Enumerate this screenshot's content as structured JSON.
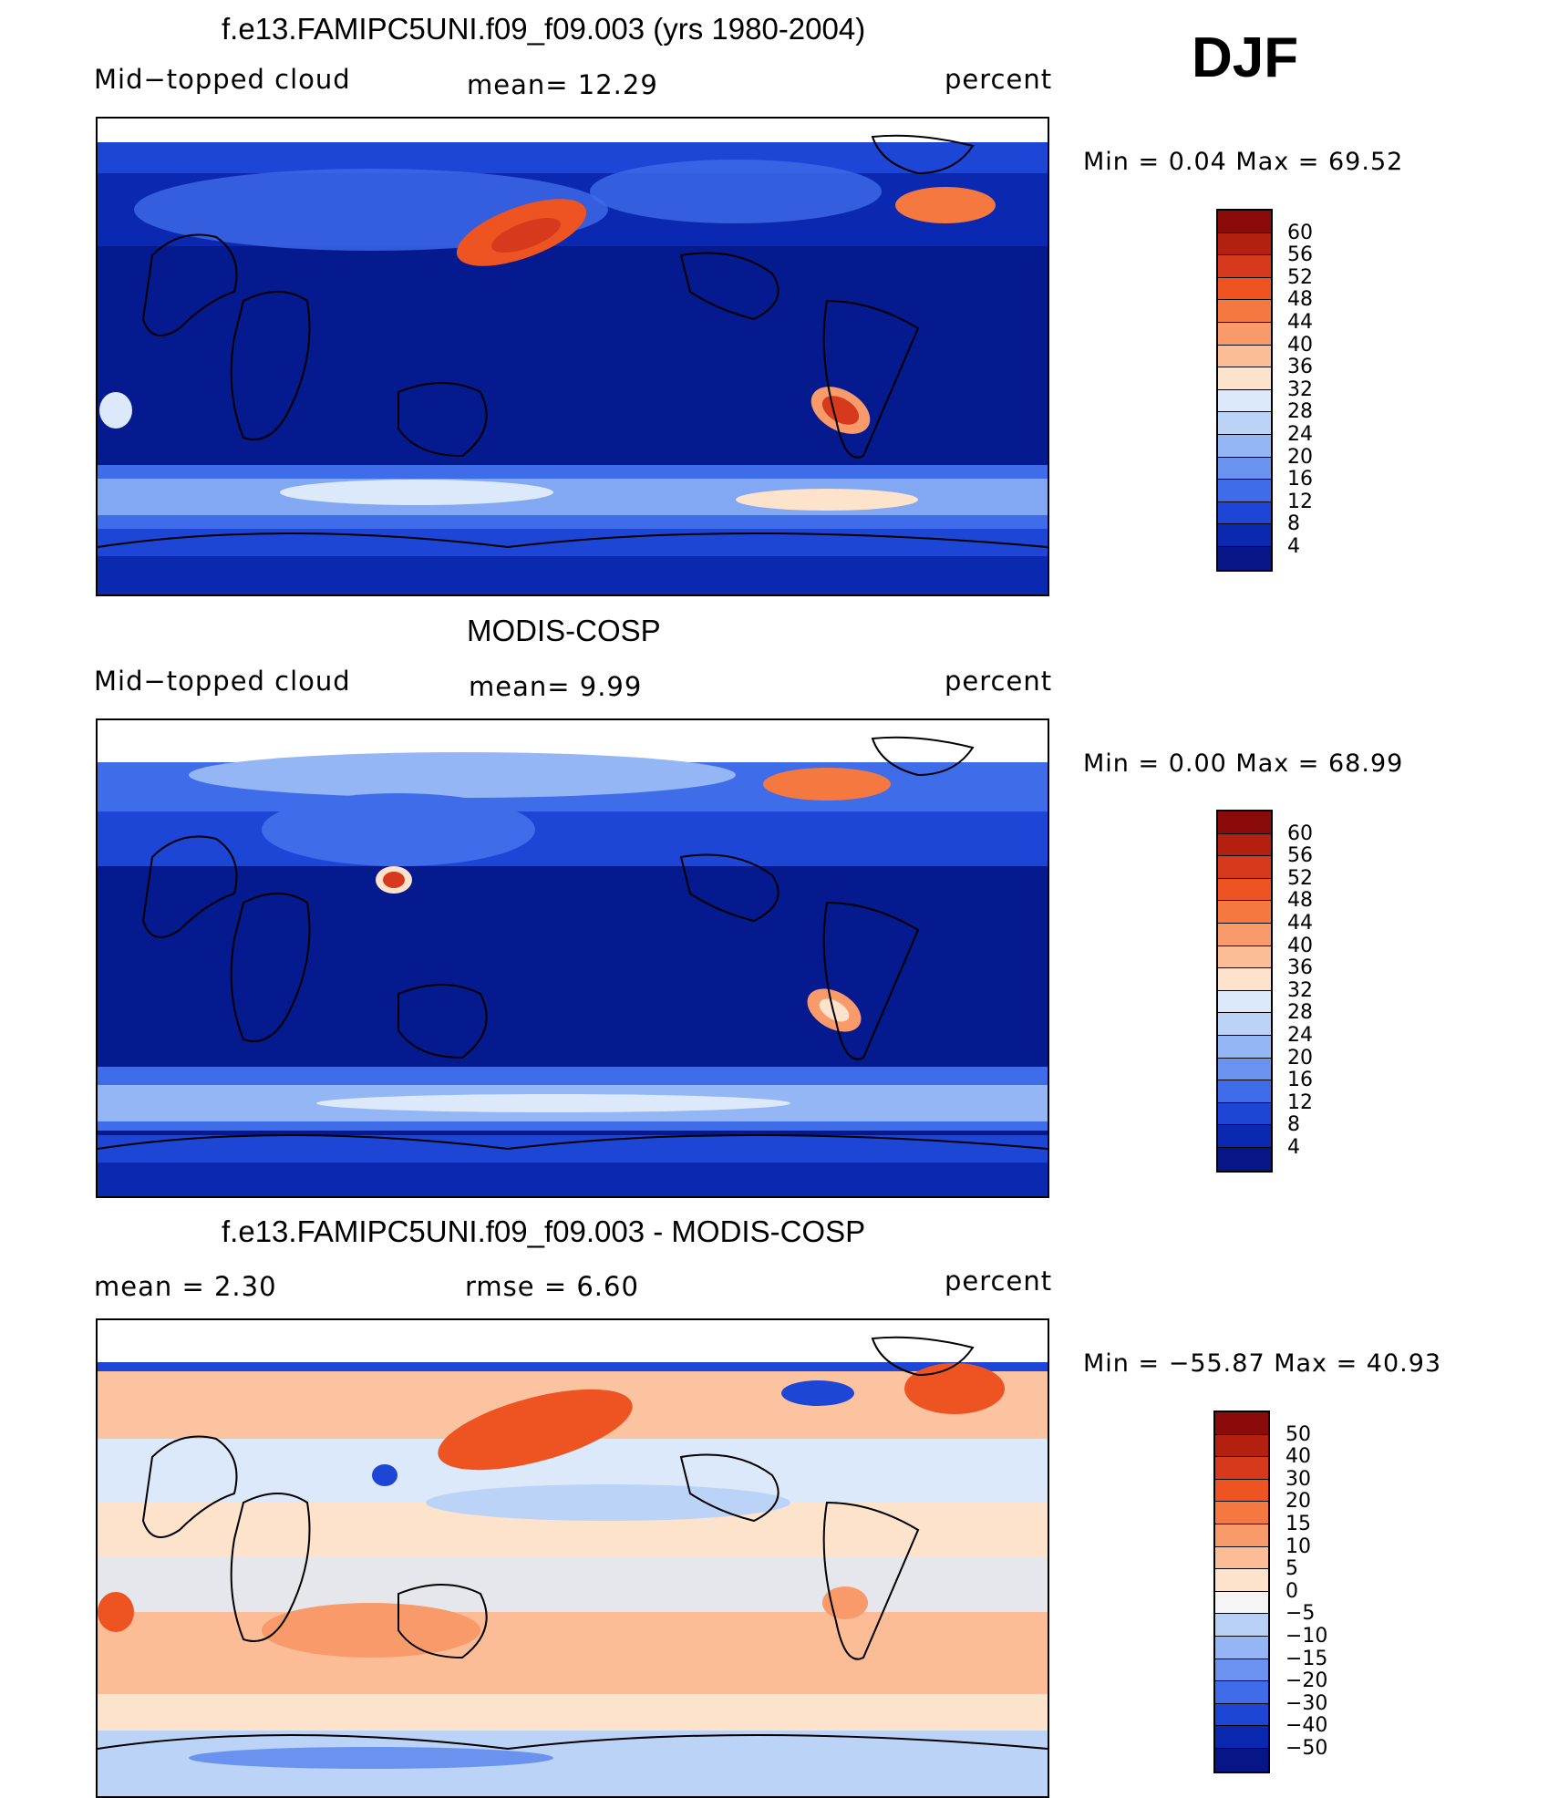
{
  "season": "DJF",
  "panels": [
    {
      "title": "f.e13.FAMIPC5UNI.f09_f09.003 (yrs 1980-2004)",
      "left_label": "Mid−topped  cloud",
      "center_label": "mean=   12.29",
      "right_label": "percent",
      "stats": "Min  =     0.04  Max  =    69.52",
      "colorbar": {
        "labels": [
          "60",
          "56",
          "52",
          "48",
          "44",
          "40",
          "36",
          "32",
          "28",
          "24",
          "20",
          "16",
          "12",
          "8",
          "4"
        ],
        "colors": [
          "#8b0a0a",
          "#b3200f",
          "#d6391c",
          "#ee5422",
          "#f57840",
          "#f89a6a",
          "#fbbc96",
          "#fde2cc",
          "#dce9fb",
          "#bcd3f8",
          "#94b6f5",
          "#6a93ef",
          "#3f6ce8",
          "#1d45d6",
          "#0a28b0",
          "#061686"
        ]
      }
    },
    {
      "title": "MODIS-COSP",
      "left_label": "Mid−topped  cloud",
      "center_label": "mean=     9.99",
      "right_label": "percent",
      "stats": "Min  =     0.00  Max  =    68.99",
      "colorbar": {
        "labels": [
          "60",
          "56",
          "52",
          "48",
          "44",
          "40",
          "36",
          "32",
          "28",
          "24",
          "20",
          "16",
          "12",
          "8",
          "4"
        ],
        "colors": [
          "#8b0a0a",
          "#b3200f",
          "#d6391c",
          "#ee5422",
          "#f57840",
          "#f89a6a",
          "#fbbc96",
          "#fde2cc",
          "#dce9fb",
          "#bcd3f8",
          "#94b6f5",
          "#6a93ef",
          "#3f6ce8",
          "#1d45d6",
          "#0a28b0",
          "#061686"
        ]
      }
    },
    {
      "title": "f.e13.FAMIPC5UNI.f09_f09.003 - MODIS-COSP",
      "left_label": "mean  =     2.30",
      "center_label": "rmse  =     6.60",
      "right_label": "percent",
      "stats": "Min  = −55.87  Max  =    40.93",
      "colorbar": {
        "labels": [
          "50",
          "40",
          "30",
          "20",
          "15",
          "10",
          "5",
          "0",
          "−5",
          "−10",
          "−15",
          "−20",
          "−30",
          "−40",
          "−50"
        ],
        "colors": [
          "#8b0a0a",
          "#b3200f",
          "#d6391c",
          "#ee5422",
          "#f57840",
          "#f89a6a",
          "#fbbc96",
          "#fde2cc",
          "#f5f5f5",
          "#b8cff6",
          "#94b6f5",
          "#6a93ef",
          "#3f6ce8",
          "#1d45d6",
          "#0a28b0",
          "#061686"
        ]
      }
    }
  ]
}
